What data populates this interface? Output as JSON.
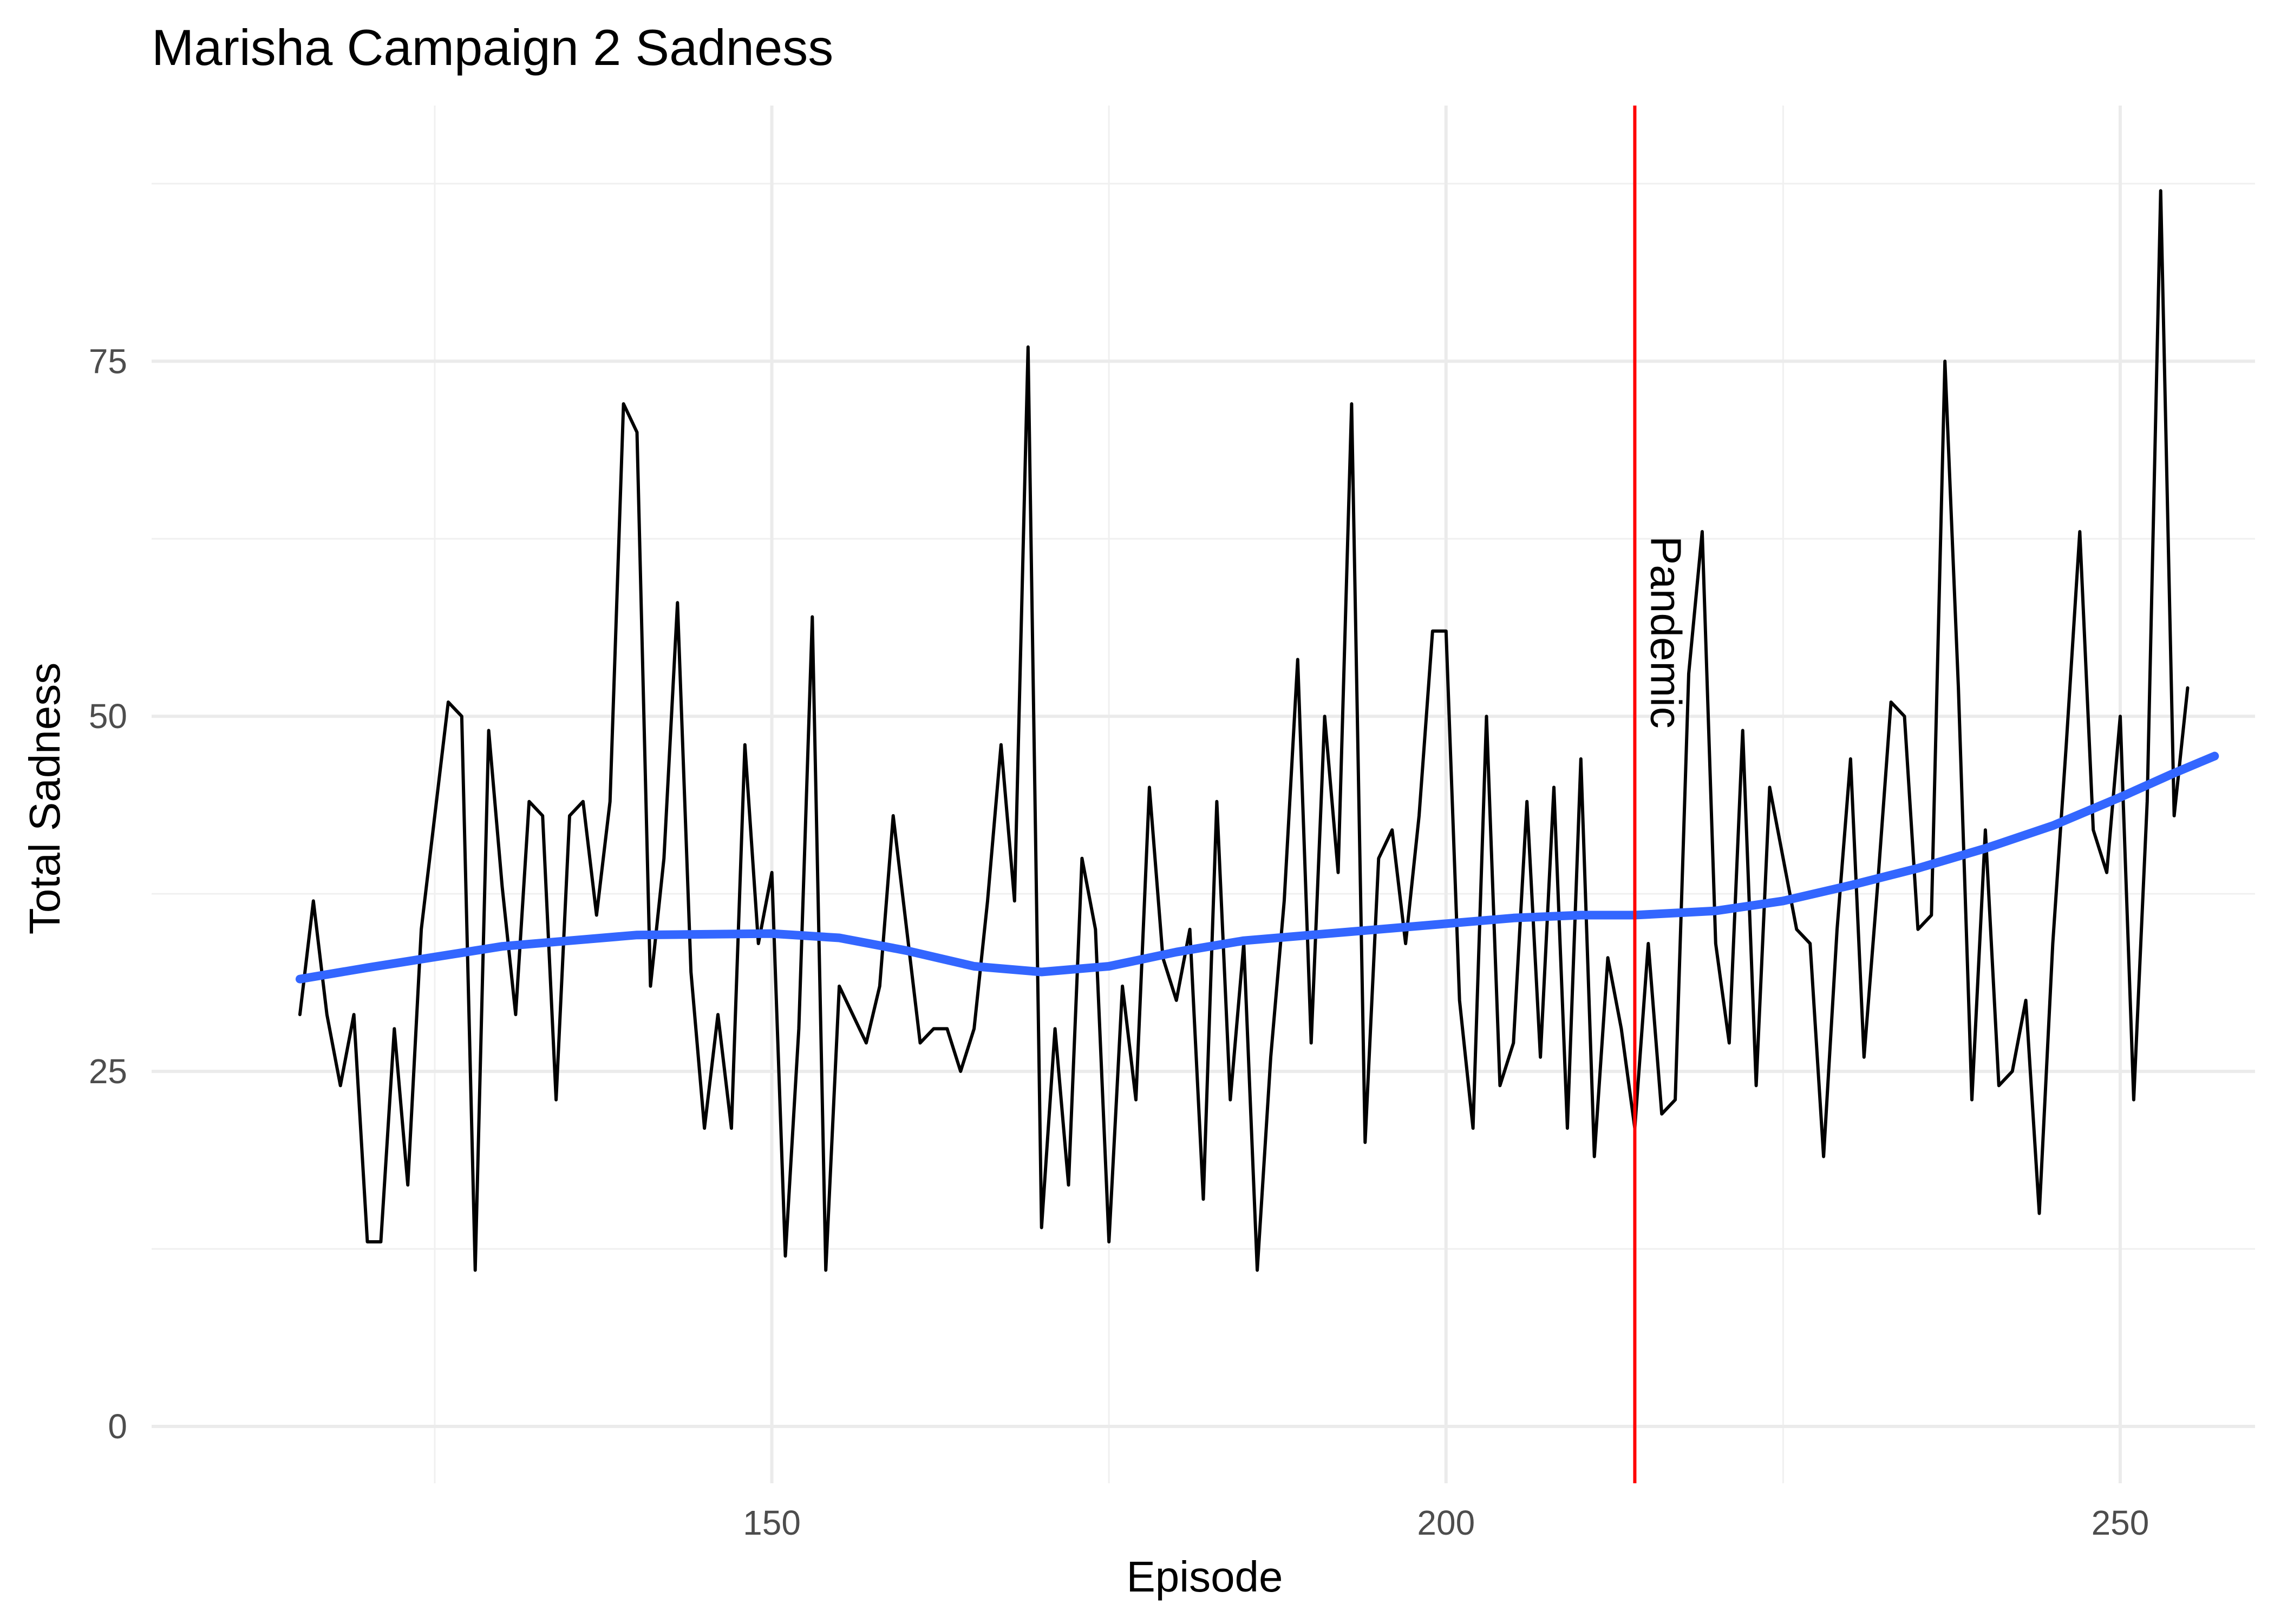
{
  "chart_data": {
    "type": "line",
    "title": "Marisha Campaign 2 Sadness",
    "xlabel": "Episode",
    "ylabel": "Total Sadness",
    "xlim": [
      104,
      260
    ],
    "ylim": [
      -4,
      93
    ],
    "x_ticks": [
      150,
      200,
      250
    ],
    "y_ticks": [
      0,
      25,
      50,
      75
    ],
    "grid": true,
    "legend": "none",
    "series": [
      {
        "type": "line",
        "color": "#000000",
        "x_start": 115,
        "values": [
          29,
          37,
          29,
          24,
          29,
          13,
          13,
          28,
          17,
          35,
          43,
          51,
          50,
          11,
          49,
          38,
          29,
          44,
          43,
          23,
          43,
          44,
          36,
          44,
          72,
          70,
          31,
          40,
          58,
          32,
          21,
          29,
          21,
          48,
          34,
          39,
          12,
          28,
          57,
          11,
          31,
          29,
          27,
          31,
          43,
          35,
          27,
          28,
          28,
          25,
          28,
          37,
          48,
          37,
          76,
          14,
          28,
          17,
          40,
          35,
          13,
          31,
          23,
          45,
          33,
          30,
          35,
          16,
          44,
          23,
          34,
          11,
          26,
          37,
          54,
          27,
          50,
          39,
          72,
          20,
          40,
          42,
          34,
          43,
          56,
          56,
          30,
          21,
          50,
          24,
          27,
          44,
          26,
          45,
          21,
          47,
          19,
          33,
          28,
          21,
          34,
          22,
          23,
          53,
          63,
          34,
          27,
          49,
          24,
          45,
          40,
          35,
          34,
          19,
          35,
          47,
          26,
          38,
          51,
          50,
          35,
          36,
          75,
          52,
          23,
          42,
          24,
          25,
          30,
          15,
          34,
          48,
          63,
          42,
          39,
          50,
          23,
          44,
          87,
          43,
          52
        ]
      },
      {
        "type": "smooth",
        "color": "#3366ff",
        "x": [
          115,
          120,
          130,
          140,
          150,
          155,
          160,
          165,
          170,
          175,
          180,
          185,
          190,
          195,
          200,
          205,
          210,
          214,
          220,
          225,
          230,
          235,
          240,
          245,
          250,
          254,
          257
        ],
        "values": [
          31.5,
          32.3,
          33.8,
          34.6,
          34.7,
          34.4,
          33.5,
          32.4,
          32.0,
          32.4,
          33.4,
          34.2,
          34.6,
          35.0,
          35.4,
          35.8,
          36.0,
          36.0,
          36.3,
          37.0,
          38.1,
          39.3,
          40.7,
          42.3,
          44.3,
          46.0,
          47.2
        ]
      }
    ],
    "vline": {
      "x": 214,
      "color": "#ff0000",
      "label": "Pandemic"
    }
  }
}
